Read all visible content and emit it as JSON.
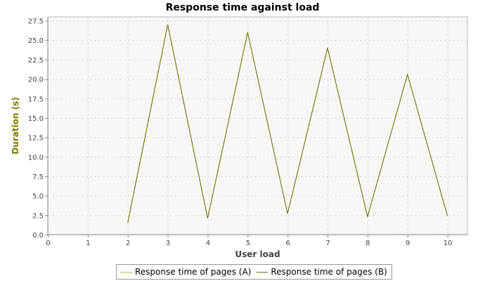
{
  "chart_data": {
    "type": "line",
    "title": "Response time against load",
    "xlabel": "User load",
    "ylabel": "Duration (s)",
    "xlim": [
      0,
      10.5
    ],
    "ylim": [
      0,
      28
    ],
    "x_ticks": [
      "0",
      "1",
      "2",
      "3",
      "4",
      "5",
      "6",
      "7",
      "8",
      "9",
      "10"
    ],
    "y_ticks": [
      "0.0",
      "2.5",
      "5.0",
      "7.5",
      "10.0",
      "12.5",
      "15.0",
      "17.5",
      "20.0",
      "22.5",
      "25.0",
      "27.5"
    ],
    "grid": true,
    "legend_position": "bottom",
    "series": [
      {
        "name": "Response time of pages (A)",
        "style": "dashed",
        "color": "#9c9c14",
        "x": [
          2,
          3,
          4,
          5,
          6,
          7,
          8,
          9,
          10
        ],
        "y": [
          1.5,
          27.0,
          2.1,
          26.0,
          2.7,
          24.0,
          2.3,
          20.6,
          2.4
        ]
      },
      {
        "name": "Response time of pages (B)",
        "style": "solid",
        "color": "#6e6e00",
        "x": [
          2,
          3,
          4,
          5,
          6,
          7,
          8,
          9,
          10
        ],
        "y": [
          1.5,
          27.0,
          2.1,
          26.0,
          2.7,
          24.0,
          2.3,
          20.6,
          2.4
        ]
      }
    ]
  },
  "colors": {
    "plot_background": "#f7f7f7",
    "grid": "#dedede",
    "axis_label": "#7a7a00"
  }
}
